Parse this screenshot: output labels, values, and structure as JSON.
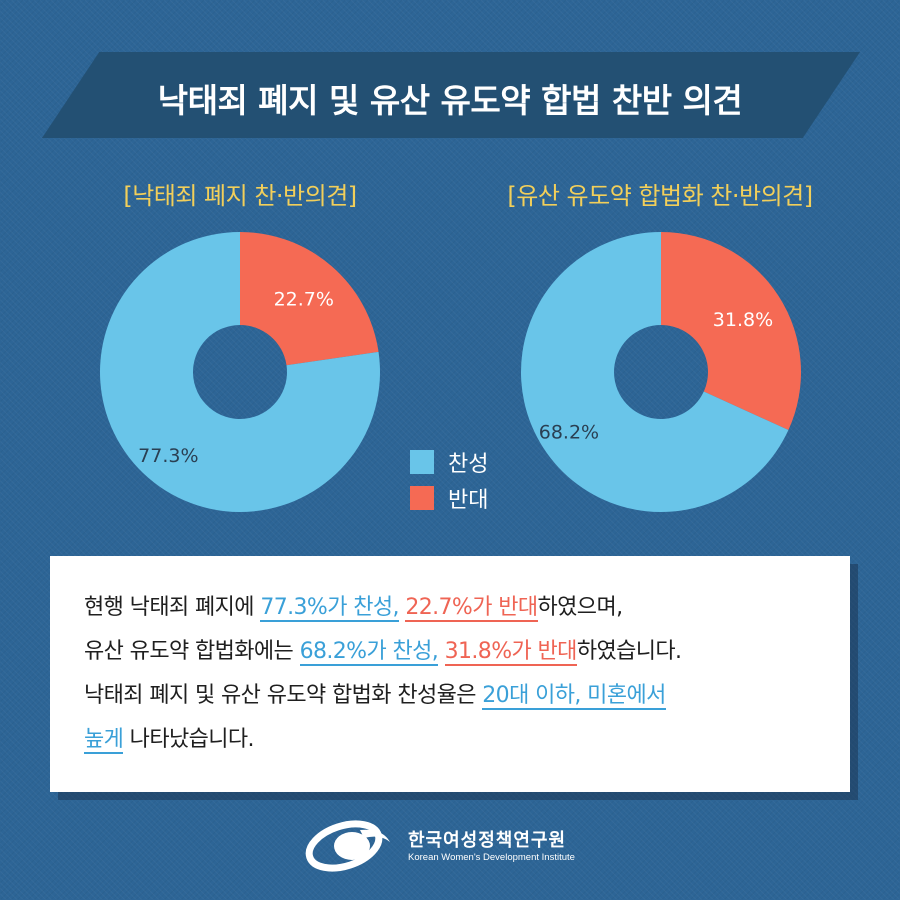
{
  "title": "낙태죄 폐지 및 유산 유도약 합법 찬반 의견",
  "chart_data": [
    {
      "type": "pie",
      "title": "[낙태죄 폐지 찬·반의견]",
      "labels": [
        "찬성",
        "반대"
      ],
      "values": [
        77.3,
        22.7
      ],
      "value_labels": [
        "77.3%",
        "22.7%"
      ],
      "colors": [
        "#69c5e9",
        "#f56a54"
      ]
    },
    {
      "type": "pie",
      "title": "[유산 유도약 합법화 찬·반의견]",
      "labels": [
        "찬성",
        "반대"
      ],
      "values": [
        68.2,
        31.8
      ],
      "value_labels": [
        "68.2%",
        "31.8%"
      ],
      "colors": [
        "#69c5e9",
        "#f56a54"
      ]
    }
  ],
  "legend": [
    {
      "label": "찬성",
      "color": "#69c5e9"
    },
    {
      "label": "반대",
      "color": "#f56a54"
    }
  ],
  "summary": {
    "line1": {
      "a": "현행 낙태죄 폐지에 ",
      "b": "77.3%가 찬성,",
      "c": " ",
      "d": "22.7%가 반대",
      "e": "하였으며,"
    },
    "line2": {
      "a": "유산 유도약 합법화에는 ",
      "b": "68.2%가 찬성,",
      "c": " ",
      "d": "31.8%가 반대",
      "e": "하였습니다."
    },
    "line3": {
      "a": "낙태죄 폐지 및 유산 유도약 합법화 찬성율은 ",
      "b": "20대 이하, 미혼에서"
    },
    "line4": {
      "a": "높게",
      "b": " 나타났습니다."
    }
  },
  "org": {
    "name_ko": "한국여성정책연구원",
    "name_en": "Korean Women's Development Institute",
    "logo_icon": "kwdi-logo-icon"
  }
}
